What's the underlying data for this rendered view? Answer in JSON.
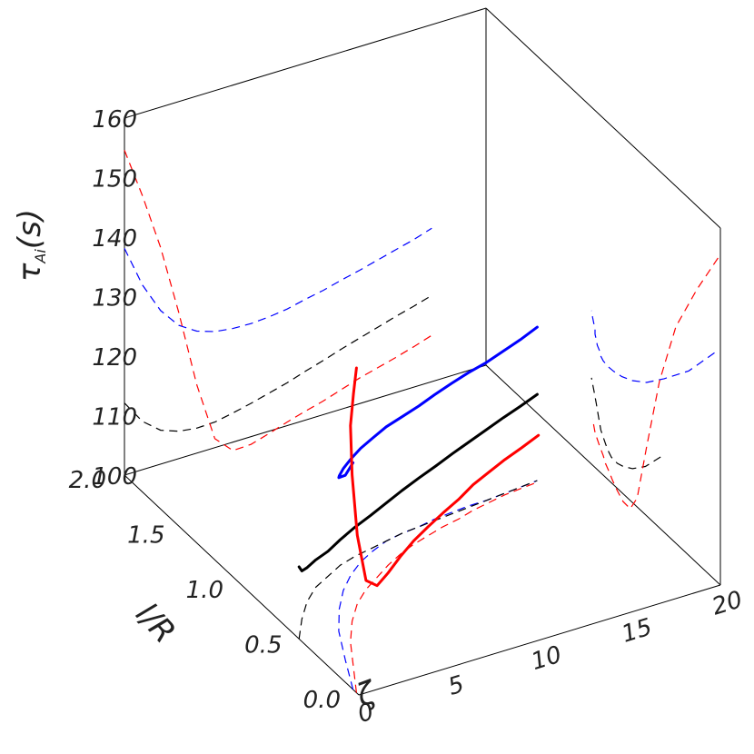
{
  "chart_data": {
    "type": "line",
    "projection": "3d",
    "axes": {
      "x": {
        "label": "ζ",
        "range": [
          0,
          20
        ],
        "ticks": [
          "0",
          "5",
          "10",
          "15",
          "20"
        ]
      },
      "y": {
        "label": "l/R",
        "range": [
          0,
          2
        ],
        "ticks": [
          "0.0",
          "0.5",
          "1.0",
          "1.5",
          "2.0"
        ]
      },
      "z": {
        "label": "τ",
        "label_subscript": "Ai",
        "label_unit": "(s)",
        "range": [
          100,
          160
        ],
        "ticks": [
          "100",
          "110",
          "120",
          "130",
          "140",
          "150",
          "160"
        ]
      }
    },
    "grid": false,
    "legend": "none",
    "series": [
      {
        "color": "#0000ff",
        "points": [
          [
            0.0,
            0.05,
            138.1
          ],
          [
            1.0,
            0.27,
            131.0
          ],
          [
            2.0,
            0.48,
            125.8
          ],
          [
            3.0,
            0.63,
            122.4
          ],
          [
            4.0,
            0.75,
            120.5
          ],
          [
            5.0,
            0.84,
            119.5
          ],
          [
            6.0,
            0.91,
            119.1
          ],
          [
            7.0,
            0.96,
            119.0
          ],
          [
            8.0,
            1.0,
            119.2
          ],
          [
            9.0,
            1.02,
            119.6
          ],
          [
            10.0,
            1.03,
            120.3
          ],
          [
            11.0,
            1.05,
            120.9
          ],
          [
            12.0,
            1.06,
            121.7
          ],
          [
            13.0,
            1.07,
            122.4
          ],
          [
            14.0,
            1.07,
            123.2
          ],
          [
            15.0,
            1.08,
            124.0
          ],
          [
            16.0,
            1.09,
            124.8
          ],
          [
            17.0,
            1.1,
            125.8
          ]
        ]
      },
      {
        "color": "#000000",
        "points": [
          [
            0.0,
            0.51,
            112.1
          ],
          [
            1.0,
            0.64,
            108.1
          ],
          [
            2.0,
            0.75,
            105.7
          ],
          [
            3.0,
            0.83,
            104.6
          ],
          [
            4.0,
            0.88,
            104.2
          ],
          [
            5.0,
            0.93,
            104.3
          ],
          [
            6.0,
            0.96,
            104.9
          ],
          [
            7.0,
            0.98,
            105.6
          ],
          [
            8.0,
            1.0,
            106.4
          ],
          [
            9.0,
            1.02,
            107.2
          ],
          [
            10.0,
            1.03,
            108.2
          ],
          [
            11.0,
            1.04,
            109.1
          ],
          [
            12.0,
            1.05,
            110.1
          ],
          [
            13.0,
            1.06,
            111.0
          ],
          [
            14.0,
            1.07,
            111.9
          ],
          [
            15.0,
            1.08,
            112.8
          ],
          [
            16.0,
            1.09,
            113.6
          ],
          [
            17.0,
            1.1,
            114.5
          ]
        ]
      },
      {
        "color": "#ff0000",
        "points": [
          [
            0.0,
            0.02,
            154.6
          ],
          [
            1.0,
            0.2,
            146.0
          ],
          [
            2.0,
            0.38,
            136.4
          ],
          [
            3.0,
            0.52,
            124.6
          ],
          [
            4.0,
            0.63,
            111.5
          ],
          [
            5.0,
            0.71,
            101.5
          ],
          [
            6.0,
            0.77,
            98.6
          ],
          [
            7.0,
            0.83,
            98.7
          ],
          [
            8.0,
            0.88,
            99.6
          ],
          [
            9.0,
            0.92,
            100.6
          ],
          [
            10.0,
            0.95,
            101.5
          ],
          [
            11.0,
            0.98,
            102.3
          ],
          [
            12.0,
            1.0,
            103.3
          ],
          [
            13.0,
            1.03,
            104.3
          ],
          [
            14.0,
            1.05,
            105.1
          ],
          [
            15.0,
            1.07,
            105.9
          ],
          [
            16.0,
            1.08,
            106.8
          ],
          [
            17.0,
            1.09,
            107.8
          ]
        ]
      }
    ]
  }
}
